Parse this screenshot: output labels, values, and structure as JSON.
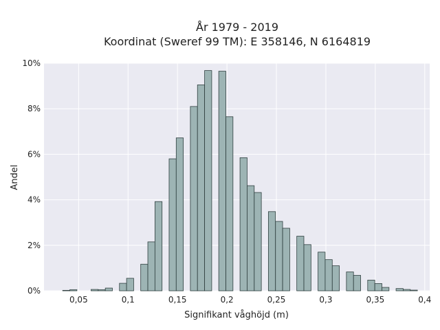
{
  "chart_data": {
    "type": "bar",
    "title_lines": [
      "År 1979 - 2019",
      "Koordinat (Sweref 99 TM): E 358146, N 6164819"
    ],
    "xlabel": "Signifikant våghöjd (m)",
    "ylabel": "Andel",
    "xlim": [
      0.015,
      0.405
    ],
    "ylim": [
      0,
      10
    ],
    "x_ticks": [
      0.05,
      0.1,
      0.15,
      0.2,
      0.25,
      0.3,
      0.35,
      0.4
    ],
    "x_tick_labels": [
      "0,05",
      "0,1",
      "0,15",
      "0,2",
      "0,25",
      "0,3",
      "0,35",
      "0,4"
    ],
    "y_ticks": [
      0,
      2,
      4,
      6,
      8,
      10
    ],
    "y_tick_labels": [
      "0%",
      "2%",
      "4%",
      "6%",
      "8%",
      "10%"
    ],
    "grid": true,
    "bin_width": 0.00717,
    "bins": [
      {
        "x0": 0.0339,
        "value": 0.02
      },
      {
        "x0": 0.0411,
        "value": 0.05
      },
      {
        "x0": 0.0626,
        "value": 0.06
      },
      {
        "x0": 0.0698,
        "value": 0.05
      },
      {
        "x0": 0.077,
        "value": 0.12
      },
      {
        "x0": 0.0913,
        "value": 0.33
      },
      {
        "x0": 0.0985,
        "value": 0.55
      },
      {
        "x0": 0.1128,
        "value": 1.17
      },
      {
        "x0": 0.12,
        "value": 2.15
      },
      {
        "x0": 0.1272,
        "value": 3.92
      },
      {
        "x0": 0.1415,
        "value": 5.8
      },
      {
        "x0": 0.1487,
        "value": 6.72
      },
      {
        "x0": 0.163,
        "value": 8.1
      },
      {
        "x0": 0.1702,
        "value": 9.05
      },
      {
        "x0": 0.1774,
        "value": 9.68
      },
      {
        "x0": 0.1917,
        "value": 9.65
      },
      {
        "x0": 0.1989,
        "value": 7.65
      },
      {
        "x0": 0.2132,
        "value": 5.85
      },
      {
        "x0": 0.2204,
        "value": 4.62
      },
      {
        "x0": 0.2276,
        "value": 4.32
      },
      {
        "x0": 0.2419,
        "value": 3.48
      },
      {
        "x0": 0.2491,
        "value": 3.05
      },
      {
        "x0": 0.2563,
        "value": 2.75
      },
      {
        "x0": 0.2706,
        "value": 2.4
      },
      {
        "x0": 0.2778,
        "value": 2.03
      },
      {
        "x0": 0.2921,
        "value": 1.7
      },
      {
        "x0": 0.2993,
        "value": 1.37
      },
      {
        "x0": 0.3065,
        "value": 1.1
      },
      {
        "x0": 0.3208,
        "value": 0.83
      },
      {
        "x0": 0.328,
        "value": 0.68
      },
      {
        "x0": 0.3423,
        "value": 0.47
      },
      {
        "x0": 0.3495,
        "value": 0.32
      },
      {
        "x0": 0.3567,
        "value": 0.15
      },
      {
        "x0": 0.371,
        "value": 0.1
      },
      {
        "x0": 0.3782,
        "value": 0.06
      },
      {
        "x0": 0.3854,
        "value": 0.03
      }
    ],
    "colors": {
      "plot_background": "#eaeaf2",
      "bar_fill": "#9db4b4",
      "bar_edge": "#2f3f3f",
      "grid": "#ffffff"
    }
  }
}
